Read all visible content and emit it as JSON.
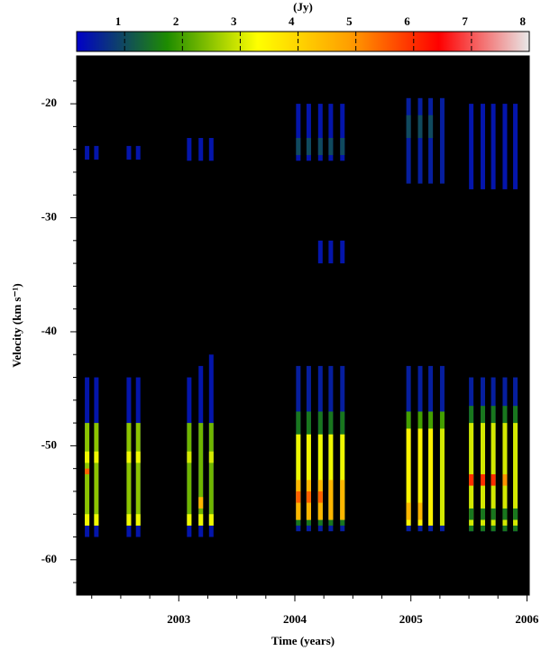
{
  "chart_data": {
    "type": "heatmap",
    "colorbar_label": "(Jy)",
    "xlabel": "Time (years)",
    "ylabel": "Velocity (km s⁻¹)",
    "xlim": [
      2002.12,
      2006.02
    ],
    "ylim": [
      -63.1,
      -15.8
    ],
    "xticks": [
      2003,
      2004,
      2005,
      2006
    ],
    "xminorticks": [
      2002.25,
      2002.5,
      2002.75,
      2003.25,
      2003.5,
      2003.75,
      2004.25,
      2004.5,
      2004.75,
      2005.25,
      2005.5,
      2005.75
    ],
    "yticks": [
      -20,
      -30,
      -40,
      -50,
      -60
    ],
    "yminorticks": [
      -18,
      -22,
      -24,
      -26,
      -28,
      -32,
      -34,
      -36,
      -38,
      -42,
      -44,
      -46,
      -48,
      -52,
      -54,
      -56,
      -58,
      -62
    ],
    "clim": [
      0.17,
      8
    ],
    "cticks": [
      1,
      2,
      3,
      4,
      5,
      6,
      7,
      8
    ],
    "colormap": [
      "#0000c8",
      "#1e8c00",
      "#ffff00",
      "#ffa000",
      "#ff0000",
      "#e8e8e8"
    ],
    "background": "#000000",
    "epochs": [
      {
        "x": 2002.21,
        "features": [
          [
            -24.9,
            -23.7,
            0.4
          ],
          [
            -58,
            -44,
            0.4
          ],
          [
            -57,
            -48,
            2.5
          ],
          [
            -57,
            -56,
            3.2
          ],
          [
            -51.5,
            -50.5,
            3.2
          ],
          [
            -52.5,
            -52,
            5.5
          ]
        ]
      },
      {
        "x": 2002.29,
        "features": [
          [
            -24.9,
            -23.7,
            0.4
          ],
          [
            -58,
            -44,
            0.4
          ],
          [
            -57,
            -48,
            2.5
          ],
          [
            -57,
            -56,
            3.2
          ],
          [
            -51.5,
            -50.5,
            3.2
          ]
        ]
      },
      {
        "x": 2002.57,
        "features": [
          [
            -24.9,
            -23.7,
            0.4
          ],
          [
            -58,
            -44,
            0.4
          ],
          [
            -57,
            -48,
            2.5
          ],
          [
            -57,
            -56,
            3.2
          ],
          [
            -51.5,
            -50.5,
            3.2
          ]
        ]
      },
      {
        "x": 2002.65,
        "features": [
          [
            -24.9,
            -23.7,
            0.4
          ],
          [
            -58,
            -44,
            0.4
          ],
          [
            -57,
            -48,
            2.5
          ],
          [
            -57,
            -56,
            3.2
          ],
          [
            -51.5,
            -50.5,
            3.2
          ]
        ]
      },
      {
        "x": 2003.09,
        "features": [
          [
            -25,
            -23,
            0.4
          ],
          [
            -58,
            -44,
            0.4
          ],
          [
            -57,
            -48,
            2.3
          ],
          [
            -57,
            -56,
            3.2
          ],
          [
            -51.5,
            -50.5,
            3
          ]
        ]
      },
      {
        "x": 2003.19,
        "features": [
          [
            -25,
            -23,
            0.4
          ],
          [
            -58,
            -43,
            0.4
          ],
          [
            -57,
            -48,
            2.3
          ],
          [
            -57,
            -56,
            3.2
          ],
          [
            -55.5,
            -54.5,
            4.5
          ]
        ]
      },
      {
        "x": 2003.28,
        "features": [
          [
            -25,
            -23,
            0.4
          ],
          [
            -58,
            -42,
            0.4
          ],
          [
            -57,
            -48,
            2.3
          ],
          [
            -57,
            -56,
            3.2
          ],
          [
            -51.5,
            -50.5,
            3
          ]
        ]
      },
      {
        "x": 2004.03,
        "features": [
          [
            -25,
            -20,
            0.4
          ],
          [
            -24.5,
            -23,
            1
          ],
          [
            -57.5,
            -43,
            0.5
          ],
          [
            -57,
            -47,
            1.5
          ],
          [
            -56.5,
            -49,
            3.2
          ],
          [
            -56.5,
            -53,
            4.5
          ],
          [
            -55,
            -54,
            5.5
          ]
        ]
      },
      {
        "x": 2004.12,
        "features": [
          [
            -25,
            -20,
            0.4
          ],
          [
            -24.5,
            -23,
            1
          ],
          [
            -57.5,
            -43,
            0.5
          ],
          [
            -57,
            -47,
            1.5
          ],
          [
            -56.5,
            -49,
            3.2
          ],
          [
            -56.5,
            -53,
            4.5
          ],
          [
            -55,
            -54,
            5.5
          ]
        ]
      },
      {
        "x": 2004.22,
        "features": [
          [
            -25,
            -20,
            0.4
          ],
          [
            -24.5,
            -23,
            1
          ],
          [
            -34,
            -32,
            0.4
          ],
          [
            -57.5,
            -43,
            0.5
          ],
          [
            -57,
            -47,
            1.5
          ],
          [
            -56.5,
            -49,
            3.2
          ],
          [
            -56.5,
            -53,
            4.5
          ],
          [
            -55,
            -54,
            5.5
          ]
        ]
      },
      {
        "x": 2004.31,
        "features": [
          [
            -25,
            -20,
            0.4
          ],
          [
            -24.5,
            -23,
            1
          ],
          [
            -34,
            -32,
            0.4
          ],
          [
            -57.5,
            -43,
            0.5
          ],
          [
            -57,
            -47,
            1.5
          ],
          [
            -56.5,
            -49,
            3.2
          ],
          [
            -56.5,
            -53,
            4.5
          ]
        ]
      },
      {
        "x": 2004.41,
        "features": [
          [
            -25,
            -20,
            0.4
          ],
          [
            -24.5,
            -23,
            1
          ],
          [
            -34,
            -32,
            0.4
          ],
          [
            -57.5,
            -43,
            0.5
          ],
          [
            -57,
            -47,
            1.5
          ],
          [
            -56.5,
            -49,
            3.2
          ],
          [
            -56.5,
            -53,
            4.5
          ]
        ]
      },
      {
        "x": 2004.98,
        "features": [
          [
            -27,
            -19.5,
            0.5
          ],
          [
            -23,
            -21,
            1
          ],
          [
            -57.5,
            -43,
            0.5
          ],
          [
            -57,
            -47,
            2
          ],
          [
            -57,
            -48.5,
            3.5
          ],
          [
            -56.5,
            -55,
            4.5
          ]
        ]
      },
      {
        "x": 2005.08,
        "features": [
          [
            -27,
            -19.5,
            0.5
          ],
          [
            -23,
            -21,
            1
          ],
          [
            -57.5,
            -43,
            0.5
          ],
          [
            -57,
            -47,
            2
          ],
          [
            -57,
            -48.5,
            3.5
          ],
          [
            -56.5,
            -55,
            4.5
          ]
        ]
      },
      {
        "x": 2005.17,
        "features": [
          [
            -27,
            -19.5,
            0.5
          ],
          [
            -23,
            -21,
            1
          ],
          [
            -57.5,
            -43,
            0.5
          ],
          [
            -57,
            -47,
            2
          ],
          [
            -57,
            -48.5,
            3.5
          ]
        ]
      },
      {
        "x": 2005.27,
        "features": [
          [
            -27,
            -19.5,
            0.5
          ],
          [
            -57.5,
            -43,
            0.5
          ],
          [
            -57,
            -47,
            2
          ],
          [
            -57,
            -48.5,
            3
          ]
        ]
      },
      {
        "x": 2005.52,
        "features": [
          [
            -27.5,
            -20,
            0.4
          ],
          [
            -57.5,
            -44,
            0.5
          ],
          [
            -57.5,
            -46.5,
            1.5
          ],
          [
            -57,
            -48,
            3
          ],
          [
            -53.5,
            -52.5,
            6
          ],
          [
            -56.5,
            -55.5,
            1.5
          ]
        ]
      },
      {
        "x": 2005.62,
        "features": [
          [
            -27.5,
            -20,
            0.4
          ],
          [
            -57.5,
            -44,
            0.5
          ],
          [
            -57.5,
            -46.5,
            1.5
          ],
          [
            -57,
            -48,
            3
          ],
          [
            -53.5,
            -52.5,
            6
          ],
          [
            -56.5,
            -55.5,
            1.5
          ]
        ]
      },
      {
        "x": 2005.71,
        "features": [
          [
            -27.5,
            -20,
            0.4
          ],
          [
            -57.5,
            -44,
            0.5
          ],
          [
            -57.5,
            -46.5,
            1.5
          ],
          [
            -57,
            -48,
            3
          ],
          [
            -53.5,
            -52.5,
            6
          ],
          [
            -56.5,
            -55.5,
            1.5
          ]
        ]
      },
      {
        "x": 2005.81,
        "features": [
          [
            -27.5,
            -20,
            0.4
          ],
          [
            -57.5,
            -44,
            0.5
          ],
          [
            -57.5,
            -46.5,
            1.5
          ],
          [
            -57,
            -48,
            3
          ],
          [
            -53.5,
            -52.5,
            5
          ],
          [
            -56.5,
            -55.5,
            1.5
          ]
        ]
      },
      {
        "x": 2005.9,
        "features": [
          [
            -27.5,
            -20,
            0.4
          ],
          [
            -57.5,
            -44,
            0.5
          ],
          [
            -57.5,
            -46.5,
            1.5
          ],
          [
            -57,
            -48,
            3
          ],
          [
            -56.5,
            -55.5,
            1.5
          ]
        ]
      }
    ]
  }
}
